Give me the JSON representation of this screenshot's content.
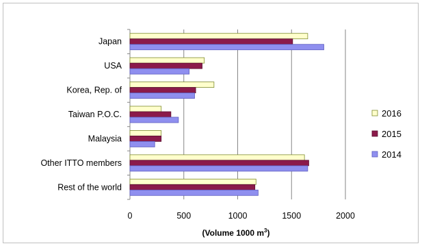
{
  "chart_data": {
    "type": "bar",
    "orientation": "horizontal",
    "categories": [
      "Japan",
      "USA",
      "Korea, Rep. of",
      "Taiwan P.O.C.",
      "Malaysia",
      "Other ITTO members",
      "Rest of the world"
    ],
    "series": [
      {
        "name": "2016",
        "values": [
          1650,
          690,
          780,
          290,
          290,
          1620,
          1170
        ],
        "color": "#ffffcc",
        "stroke": "#7f8c2f"
      },
      {
        "name": "2015",
        "values": [
          1510,
          670,
          610,
          380,
          290,
          1660,
          1160
        ],
        "color": "#8b1a4a",
        "stroke": "#5a0f30"
      },
      {
        "name": "2014",
        "values": [
          1800,
          550,
          600,
          450,
          230,
          1650,
          1190
        ],
        "color": "#8f8fef",
        "stroke": "#5f5fc0"
      }
    ],
    "xlim": [
      0,
      2000
    ],
    "xticks": [
      "0",
      "500",
      "1000",
      "1500",
      "2000"
    ],
    "xlabel_main": "(Volume 1000 m",
    "xlabel_sup": "3",
    "xlabel_end": ")",
    "grid": true,
    "legend_position": "right"
  }
}
